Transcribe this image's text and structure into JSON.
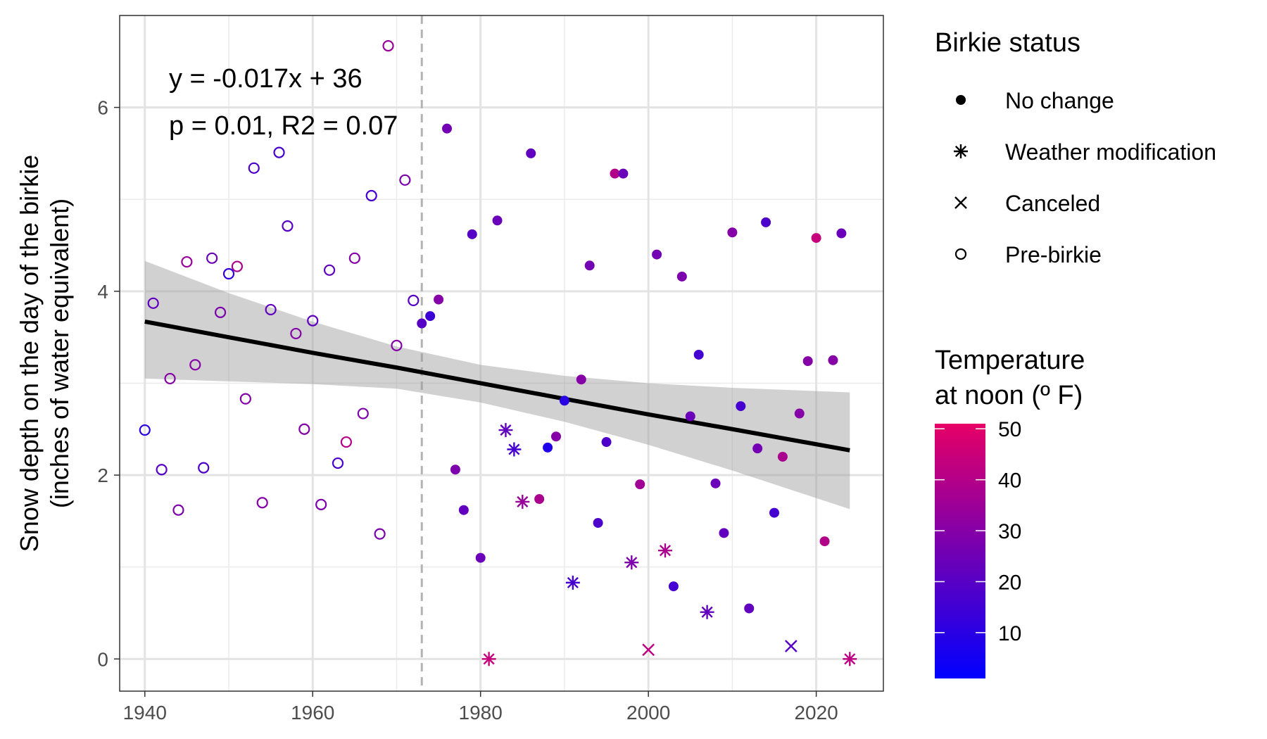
{
  "chart_data": {
    "type": "scatter",
    "title": "",
    "xlabel": "",
    "ylabel": [
      "Snow depth on the day of the birkie",
      "(inches of water equivalent)"
    ],
    "xlim": [
      1937,
      2028
    ],
    "ylim": [
      -0.35,
      7.0
    ],
    "x_ticks": [
      1940,
      1960,
      1980,
      2000,
      2020
    ],
    "y_ticks": [
      0,
      2,
      4,
      6
    ],
    "grid": true,
    "reference_line_x": 1973,
    "annotation": {
      "equation": "y = -0.017x + 36",
      "stats": "p = 0.01, R2 = 0.07"
    },
    "trend": {
      "x": [
        1940,
        1950,
        1960,
        1970,
        1980,
        1990,
        2000,
        2010,
        2024
      ],
      "y": [
        3.67,
        3.5,
        3.33,
        3.17,
        3.0,
        2.83,
        2.66,
        2.5,
        2.27
      ],
      "upper": [
        4.33,
        3.98,
        3.67,
        3.4,
        3.2,
        3.08,
        3.0,
        2.95,
        2.9
      ],
      "lower": [
        3.05,
        3.02,
        2.99,
        2.94,
        2.79,
        2.58,
        2.33,
        2.05,
        1.63
      ]
    },
    "shape_legend": {
      "title": "Birkie status",
      "entries": [
        {
          "key": "no_change",
          "label": "No change"
        },
        {
          "key": "weather_mod",
          "label": "Weather modification"
        },
        {
          "key": "canceled",
          "label": "Canceled"
        },
        {
          "key": "pre_birkie",
          "label": "Pre-birkie"
        }
      ]
    },
    "color_legend": {
      "title": [
        "Temperature",
        "at noon (º F)"
      ],
      "ticks": [
        10,
        20,
        30,
        40,
        50
      ],
      "range": [
        1,
        51
      ],
      "low_color": "#0000ff",
      "high_color": "#e60066"
    },
    "points": [
      {
        "x": 1940,
        "y": 2.49,
        "status": "pre_birkie",
        "temp": 10
      },
      {
        "x": 1941,
        "y": 3.87,
        "status": "pre_birkie",
        "temp": 22
      },
      {
        "x": 1942,
        "y": 2.06,
        "status": "pre_birkie",
        "temp": 20
      },
      {
        "x": 1943,
        "y": 3.05,
        "status": "pre_birkie",
        "temp": 30
      },
      {
        "x": 1944,
        "y": 1.62,
        "status": "pre_birkie",
        "temp": 28
      },
      {
        "x": 1945,
        "y": 4.32,
        "status": "pre_birkie",
        "temp": 34
      },
      {
        "x": 1946,
        "y": 3.2,
        "status": "pre_birkie",
        "temp": 30
      },
      {
        "x": 1947,
        "y": 2.08,
        "status": "pre_birkie",
        "temp": 18
      },
      {
        "x": 1948,
        "y": 4.36,
        "status": "pre_birkie",
        "temp": 24
      },
      {
        "x": 1949,
        "y": 3.77,
        "status": "pre_birkie",
        "temp": 28
      },
      {
        "x": 1950,
        "y": 4.19,
        "status": "pre_birkie",
        "temp": 12
      },
      {
        "x": 1951,
        "y": 4.27,
        "status": "pre_birkie",
        "temp": 38
      },
      {
        "x": 1952,
        "y": 2.83,
        "status": "pre_birkie",
        "temp": 30
      },
      {
        "x": 1953,
        "y": 5.34,
        "status": "pre_birkie",
        "temp": 18
      },
      {
        "x": 1954,
        "y": 1.7,
        "status": "pre_birkie",
        "temp": 30
      },
      {
        "x": 1955,
        "y": 3.8,
        "status": "pre_birkie",
        "temp": 22
      },
      {
        "x": 1956,
        "y": 5.51,
        "status": "pre_birkie",
        "temp": 16
      },
      {
        "x": 1957,
        "y": 4.71,
        "status": "pre_birkie",
        "temp": 20
      },
      {
        "x": 1958,
        "y": 3.54,
        "status": "pre_birkie",
        "temp": 30
      },
      {
        "x": 1959,
        "y": 2.5,
        "status": "pre_birkie",
        "temp": 30
      },
      {
        "x": 1960,
        "y": 3.68,
        "status": "pre_birkie",
        "temp": 22
      },
      {
        "x": 1961,
        "y": 1.68,
        "status": "pre_birkie",
        "temp": 28
      },
      {
        "x": 1962,
        "y": 4.23,
        "status": "pre_birkie",
        "temp": 22
      },
      {
        "x": 1963,
        "y": 2.13,
        "status": "pre_birkie",
        "temp": 16
      },
      {
        "x": 1964,
        "y": 2.36,
        "status": "pre_birkie",
        "temp": 40
      },
      {
        "x": 1965,
        "y": 4.36,
        "status": "pre_birkie",
        "temp": 30
      },
      {
        "x": 1966,
        "y": 2.67,
        "status": "pre_birkie",
        "temp": 28
      },
      {
        "x": 1967,
        "y": 5.04,
        "status": "pre_birkie",
        "temp": 16
      },
      {
        "x": 1968,
        "y": 1.36,
        "status": "pre_birkie",
        "temp": 28
      },
      {
        "x": 1969,
        "y": 6.67,
        "status": "pre_birkie",
        "temp": 34
      },
      {
        "x": 1970,
        "y": 3.41,
        "status": "pre_birkie",
        "temp": 30
      },
      {
        "x": 1971,
        "y": 5.21,
        "status": "pre_birkie",
        "temp": 28
      },
      {
        "x": 1972,
        "y": 3.9,
        "status": "pre_birkie",
        "temp": 20
      },
      {
        "x": 1973,
        "y": 3.65,
        "status": "no_change",
        "temp": 20
      },
      {
        "x": 1974,
        "y": 3.73,
        "status": "no_change",
        "temp": 14
      },
      {
        "x": 1975,
        "y": 3.91,
        "status": "no_change",
        "temp": 30
      },
      {
        "x": 1976,
        "y": 5.77,
        "status": "no_change",
        "temp": 26
      },
      {
        "x": 1977,
        "y": 2.06,
        "status": "no_change",
        "temp": 28
      },
      {
        "x": 1978,
        "y": 1.62,
        "status": "no_change",
        "temp": 22
      },
      {
        "x": 1979,
        "y": 4.62,
        "status": "no_change",
        "temp": 20
      },
      {
        "x": 1980,
        "y": 1.1,
        "status": "no_change",
        "temp": 24
      },
      {
        "x": 1981,
        "y": 0.0,
        "status": "weather_mod",
        "temp": 44
      },
      {
        "x": 1982,
        "y": 4.77,
        "status": "no_change",
        "temp": 24
      },
      {
        "x": 1983,
        "y": 2.49,
        "status": "weather_mod",
        "temp": 22
      },
      {
        "x": 1984,
        "y": 2.28,
        "status": "weather_mod",
        "temp": 16
      },
      {
        "x": 1985,
        "y": 1.71,
        "status": "weather_mod",
        "temp": 34
      },
      {
        "x": 1986,
        "y": 5.5,
        "status": "no_change",
        "temp": 22
      },
      {
        "x": 1987,
        "y": 1.74,
        "status": "no_change",
        "temp": 38
      },
      {
        "x": 1988,
        "y": 2.3,
        "status": "no_change",
        "temp": 8
      },
      {
        "x": 1989,
        "y": 2.42,
        "status": "no_change",
        "temp": 30
      },
      {
        "x": 1990,
        "y": 2.81,
        "status": "no_change",
        "temp": 10
      },
      {
        "x": 1991,
        "y": 0.83,
        "status": "weather_mod",
        "temp": 16
      },
      {
        "x": 1992,
        "y": 3.04,
        "status": "no_change",
        "temp": 30
      },
      {
        "x": 1993,
        "y": 4.28,
        "status": "no_change",
        "temp": 26
      },
      {
        "x": 1994,
        "y": 1.48,
        "status": "no_change",
        "temp": 18
      },
      {
        "x": 1995,
        "y": 2.36,
        "status": "no_change",
        "temp": 18
      },
      {
        "x": 1996,
        "y": 5.28,
        "status": "no_change",
        "temp": 40
      },
      {
        "x": 1997,
        "y": 5.28,
        "status": "no_change",
        "temp": 24
      },
      {
        "x": 1998,
        "y": 1.05,
        "status": "weather_mod",
        "temp": 28
      },
      {
        "x": 1999,
        "y": 1.9,
        "status": "no_change",
        "temp": 36
      },
      {
        "x": 2000,
        "y": 0.1,
        "status": "canceled",
        "temp": 42
      },
      {
        "x": 2001,
        "y": 4.4,
        "status": "no_change",
        "temp": 26
      },
      {
        "x": 2002,
        "y": 1.18,
        "status": "weather_mod",
        "temp": 38
      },
      {
        "x": 2003,
        "y": 0.79,
        "status": "no_change",
        "temp": 16
      },
      {
        "x": 2004,
        "y": 4.16,
        "status": "no_change",
        "temp": 28
      },
      {
        "x": 2005,
        "y": 2.64,
        "status": "no_change",
        "temp": 24
      },
      {
        "x": 2006,
        "y": 3.31,
        "status": "no_change",
        "temp": 16
      },
      {
        "x": 2007,
        "y": 0.51,
        "status": "weather_mod",
        "temp": 22
      },
      {
        "x": 2008,
        "y": 1.91,
        "status": "no_change",
        "temp": 24
      },
      {
        "x": 2009,
        "y": 1.37,
        "status": "no_change",
        "temp": 22
      },
      {
        "x": 2010,
        "y": 4.64,
        "status": "no_change",
        "temp": 30
      },
      {
        "x": 2011,
        "y": 2.75,
        "status": "no_change",
        "temp": 16
      },
      {
        "x": 2012,
        "y": 0.55,
        "status": "no_change",
        "temp": 22
      },
      {
        "x": 2013,
        "y": 2.29,
        "status": "no_change",
        "temp": 26
      },
      {
        "x": 2014,
        "y": 4.75,
        "status": "no_change",
        "temp": 18
      },
      {
        "x": 2015,
        "y": 1.59,
        "status": "no_change",
        "temp": 16
      },
      {
        "x": 2016,
        "y": 2.2,
        "status": "no_change",
        "temp": 38
      },
      {
        "x": 2017,
        "y": 0.14,
        "status": "canceled",
        "temp": 20
      },
      {
        "x": 2018,
        "y": 2.67,
        "status": "no_change",
        "temp": 30
      },
      {
        "x": 2019,
        "y": 3.24,
        "status": "no_change",
        "temp": 30
      },
      {
        "x": 2020,
        "y": 4.58,
        "status": "no_change",
        "temp": 44
      },
      {
        "x": 2021,
        "y": 1.28,
        "status": "no_change",
        "temp": 40
      },
      {
        "x": 2022,
        "y": 3.25,
        "status": "no_change",
        "temp": 30
      },
      {
        "x": 2023,
        "y": 4.63,
        "status": "no_change",
        "temp": 24
      },
      {
        "x": 2024,
        "y": 0.0,
        "status": "weather_mod",
        "temp": 42
      }
    ]
  }
}
